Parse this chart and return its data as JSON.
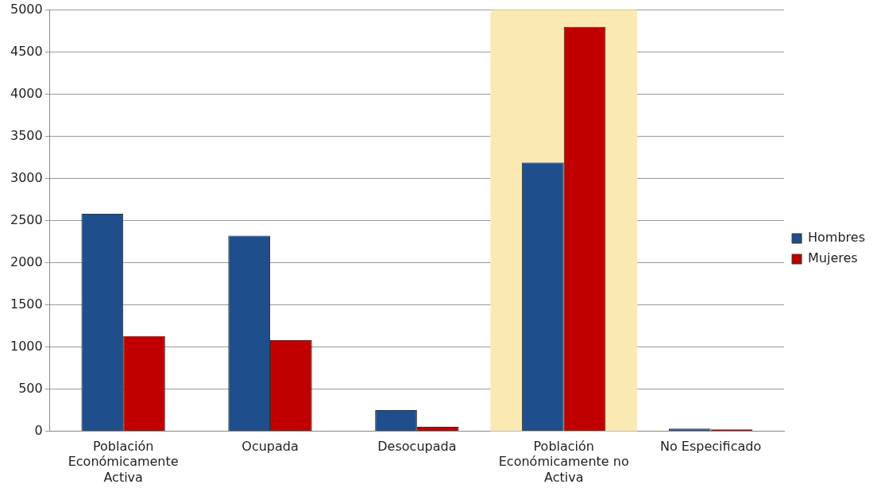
{
  "chart_data": {
    "type": "bar",
    "categories": [
      "Población Económicamente Activa",
      "Ocupada",
      "Desocupada",
      "Población Económicamente no Activa",
      "No Especificado"
    ],
    "series": [
      {
        "name": "Hombres",
        "color": "#1f4e8c",
        "values": [
          2580,
          2320,
          250,
          3190,
          30
        ]
      },
      {
        "name": "Mujeres",
        "color": "#c00000",
        "values": [
          1130,
          1080,
          50,
          4800,
          20
        ]
      }
    ],
    "ylim": [
      0,
      5000
    ],
    "yticks": [
      0,
      500,
      1000,
      1500,
      2000,
      2500,
      3000,
      3500,
      4000,
      4500,
      5000
    ],
    "grid": "y",
    "legend": "right",
    "bands": [
      {
        "axis": "x",
        "from": "Población Económicamente no Activa",
        "to": "Población Económicamente no Activa",
        "color": "#fbe9b3"
      }
    ]
  }
}
